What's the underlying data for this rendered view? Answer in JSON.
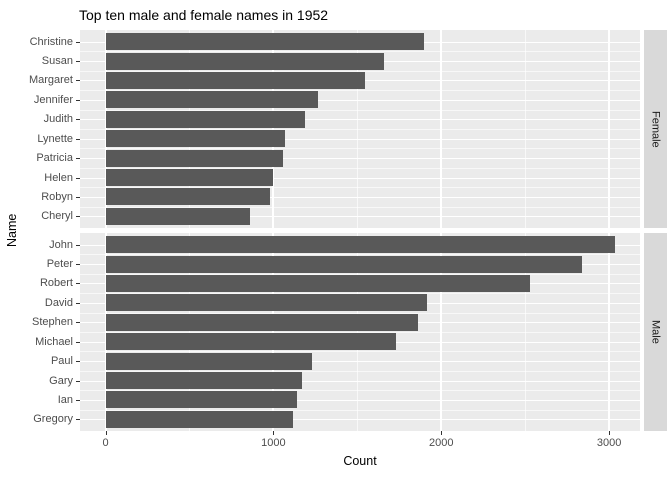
{
  "chart_data": {
    "type": "bar",
    "orientation": "horizontal",
    "title": "Top ten male and female names in 1952",
    "xlabel": "Count",
    "ylabel": "Name",
    "x_ticks": [
      0,
      1000,
      2000,
      3000
    ],
    "x_minor_ticks": [
      500,
      1500,
      2500
    ],
    "xlim": [
      -152,
      3184
    ],
    "grid": "white major and minor gridlines on grey panel",
    "legend_position": "none",
    "facets": [
      {
        "label": "Female",
        "categories": [
          "Christine",
          "Susan",
          "Margaret",
          "Jennifer",
          "Judith",
          "Lynette",
          "Patricia",
          "Helen",
          "Robyn",
          "Cheryl"
        ],
        "values": [
          1895,
          1660,
          1545,
          1265,
          1190,
          1070,
          1060,
          1000,
          980,
          860
        ]
      },
      {
        "label": "Male",
        "categories": [
          "John",
          "Peter",
          "Robert",
          "David",
          "Stephen",
          "Michael",
          "Paul",
          "Gary",
          "Ian",
          "Gregory"
        ],
        "values": [
          3035,
          2840,
          2530,
          1915,
          1860,
          1730,
          1230,
          1170,
          1140,
          1115
        ]
      }
    ]
  },
  "style": {
    "bar_color": "#595959",
    "panel_bg": "#EBEBEB",
    "strip_bg": "#D9D9D9",
    "grid_color": "#FFFFFF",
    "tick_text_color": "#4D4D4D",
    "title_color": "#000000"
  }
}
